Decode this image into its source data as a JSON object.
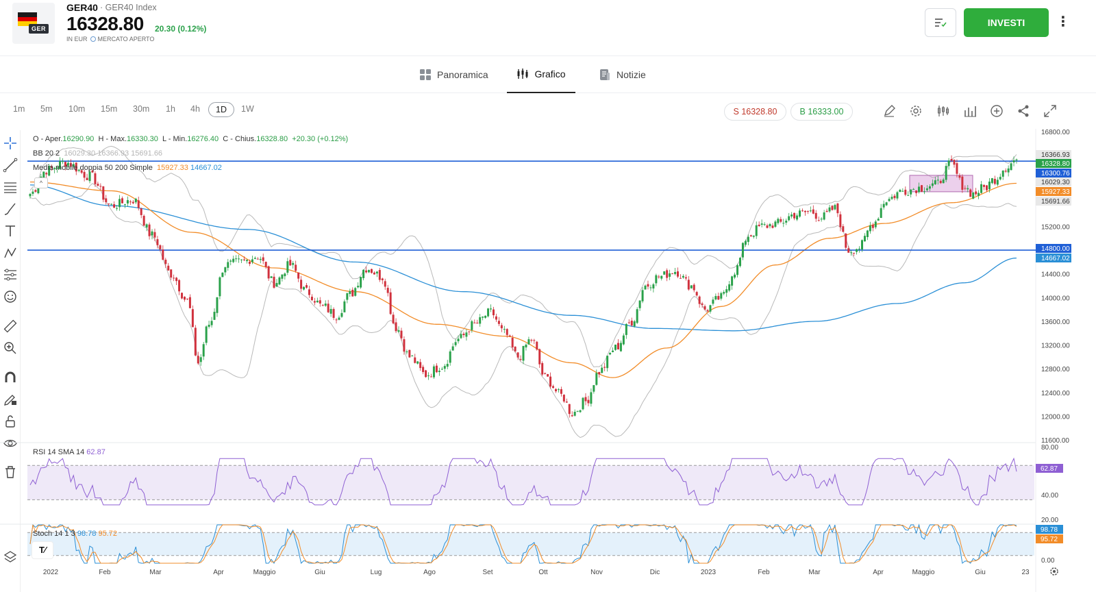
{
  "instrument": {
    "symbol": "GER40",
    "description": "GER40 Index",
    "price": "16328.80",
    "change": "20.30 (0.12%)",
    "currency": "IN EUR",
    "market_status": "MERCATO APERTO",
    "badge": "GER"
  },
  "actions": {
    "invest_label": "INVESTI"
  },
  "tabs": [
    {
      "label": "Panoramica",
      "active": false
    },
    {
      "label": "Grafico",
      "active": true
    },
    {
      "label": "Notizie",
      "active": false
    }
  ],
  "timeframes": [
    "1m",
    "5m",
    "10m",
    "15m",
    "30m",
    "1h",
    "4h",
    "1D",
    "1W"
  ],
  "selected_timeframe": "1D",
  "quotes": {
    "sell": "S 16328.80",
    "buy": "B 16333.00"
  },
  "ohlc": {
    "o_label": "O - Aper.",
    "o": "16290.90",
    "h_label": "H - Max.",
    "h": "16330.30",
    "l_label": "L - Min.",
    "l": "16276.40",
    "c_label": "C - Chius.",
    "c": "16328.80",
    "chg": "+20.30 (+0.12%)"
  },
  "indicators": {
    "bb": {
      "label": "BB 20 2",
      "v1": "16029.30",
      "v2": "16366.93",
      "v3": "15691.66"
    },
    "ma": {
      "label": "Media mobile doppia 50 200 Simple",
      "v1": "15927.33",
      "v2": "14667.02"
    },
    "rsi": {
      "label": "RSI 14 SMA 14",
      "v": "62.87"
    },
    "stoch": {
      "label": "Stoch 14 1 3",
      "v1": "98.78",
      "v2": "95.72"
    }
  },
  "colors": {
    "up": "#2aa14a",
    "down": "#d0313d",
    "ma50": "#f28c28",
    "ma200": "#2a8fd6",
    "bb": "#b9b9b9",
    "hline": "#1f5fd6",
    "rsi": "#8e5fd3",
    "stoch_k": "#2a8fd6",
    "stoch_d": "#f28c28",
    "invest": "#2fad3c"
  },
  "price_axis": [
    "16800.00",
    "15200.00",
    "14400.00",
    "14000.00",
    "13600.00",
    "13200.00",
    "12800.00",
    "12400.00",
    "12000.00",
    "11600.00"
  ],
  "price_badges": [
    {
      "label": "16366.93",
      "color": "#e8e8e8",
      "text": "#333"
    },
    {
      "label": "16328.80",
      "color": "#2aa14a",
      "text": "#fff"
    },
    {
      "label": "16300.76",
      "color": "#1f5fd6",
      "text": "#fff"
    },
    {
      "label": "16029.30",
      "color": "#e8e8e8",
      "text": "#333"
    },
    {
      "label": "15927.33",
      "color": "#f28c28",
      "text": "#fff"
    },
    {
      "label": "15691.66",
      "color": "#e8e8e8",
      "text": "#333"
    },
    {
      "label": "14800.00",
      "color": "#1f5fd6",
      "text": "#fff"
    },
    {
      "label": "14667.02",
      "color": "#2a8fd6",
      "text": "#fff"
    }
  ],
  "rsi_axis": [
    "80.00",
    "40.00",
    "20.00"
  ],
  "rsi_badge": "62.87",
  "stoch_axis": [
    "0.00"
  ],
  "stoch_badges": [
    "98.78",
    "95.72"
  ],
  "time_axis": [
    "2022",
    "Feb",
    "Mar",
    "Apr",
    "Maggio",
    "Giu",
    "Lug",
    "Ago",
    "Set",
    "Ott",
    "Nov",
    "Dic",
    "2023",
    "Feb",
    "Mar",
    "Apr",
    "Maggio",
    "Giu",
    "23"
  ],
  "chart_data": {
    "type": "candlestick",
    "price_range": [
      11600,
      16800
    ],
    "horizontal_lines": [
      16300.76,
      14800.0
    ],
    "close_anchors": [
      [
        0,
        15750
      ],
      [
        6,
        16150
      ],
      [
        13,
        16280
      ],
      [
        22,
        16050
      ],
      [
        30,
        15550
      ],
      [
        38,
        15650
      ],
      [
        45,
        15050
      ],
      [
        52,
        14400
      ],
      [
        58,
        13950
      ],
      [
        62,
        12900
      ],
      [
        66,
        13550
      ],
      [
        72,
        14550
      ],
      [
        78,
        14600
      ],
      [
        84,
        14700
      ],
      [
        90,
        14250
      ],
      [
        96,
        14550
      ],
      [
        102,
        14100
      ],
      [
        108,
        13850
      ],
      [
        113,
        13700
      ],
      [
        118,
        14050
      ],
      [
        124,
        14500
      ],
      [
        130,
        14350
      ],
      [
        135,
        13500
      ],
      [
        140,
        13000
      ],
      [
        146,
        12700
      ],
      [
        152,
        12850
      ],
      [
        158,
        13300
      ],
      [
        164,
        13550
      ],
      [
        170,
        13750
      ],
      [
        175,
        13400
      ],
      [
        180,
        13000
      ],
      [
        185,
        13300
      ],
      [
        190,
        12650
      ],
      [
        196,
        12350
      ],
      [
        200,
        12050
      ],
      [
        205,
        12250
      ],
      [
        210,
        12750
      ],
      [
        216,
        13150
      ],
      [
        222,
        13600
      ],
      [
        227,
        14200
      ],
      [
        232,
        14350
      ],
      [
        238,
        14450
      ],
      [
        244,
        14200
      ],
      [
        249,
        13800
      ],
      [
        255,
        14000
      ],
      [
        260,
        14450
      ],
      [
        265,
        15050
      ],
      [
        270,
        15200
      ],
      [
        276,
        15250
      ],
      [
        282,
        15400
      ],
      [
        288,
        15450
      ],
      [
        292,
        15350
      ],
      [
        297,
        15500
      ],
      [
        302,
        14800
      ],
      [
        306,
        14850
      ],
      [
        311,
        15250
      ],
      [
        316,
        15650
      ],
      [
        322,
        15800
      ],
      [
        328,
        15850
      ],
      [
        334,
        15900
      ],
      [
        340,
        16250
      ],
      [
        344,
        15900
      ],
      [
        348,
        15750
      ],
      [
        352,
        15850
      ],
      [
        356,
        16000
      ],
      [
        360,
        16200
      ],
      [
        364,
        16328.8
      ]
    ],
    "ma50_anchors": [
      [
        0,
        15950
      ],
      [
        30,
        15800
      ],
      [
        60,
        15100
      ],
      [
        90,
        14500
      ],
      [
        120,
        14100
      ],
      [
        150,
        13550
      ],
      [
        175,
        13350
      ],
      [
        200,
        12900
      ],
      [
        215,
        12650
      ],
      [
        235,
        13150
      ],
      [
        255,
        13850
      ],
      [
        275,
        14550
      ],
      [
        295,
        15000
      ],
      [
        315,
        15250
      ],
      [
        340,
        15600
      ],
      [
        364,
        15927.33
      ]
    ],
    "ma200_anchors": [
      [
        0,
        15900
      ],
      [
        30,
        15550
      ],
      [
        80,
        15150
      ],
      [
        120,
        14600
      ],
      [
        160,
        14100
      ],
      [
        200,
        13700
      ],
      [
        230,
        13480
      ],
      [
        260,
        13440
      ],
      [
        290,
        13600
      ],
      [
        320,
        13900
      ],
      [
        345,
        14250
      ],
      [
        364,
        14667.02
      ]
    ],
    "bb_last": [
      16366.93,
      16029.3,
      15691.66
    ],
    "rsi_range": [
      0,
      100
    ],
    "rsi_band": [
      30,
      70
    ],
    "stoch_band": [
      20,
      80
    ]
  }
}
